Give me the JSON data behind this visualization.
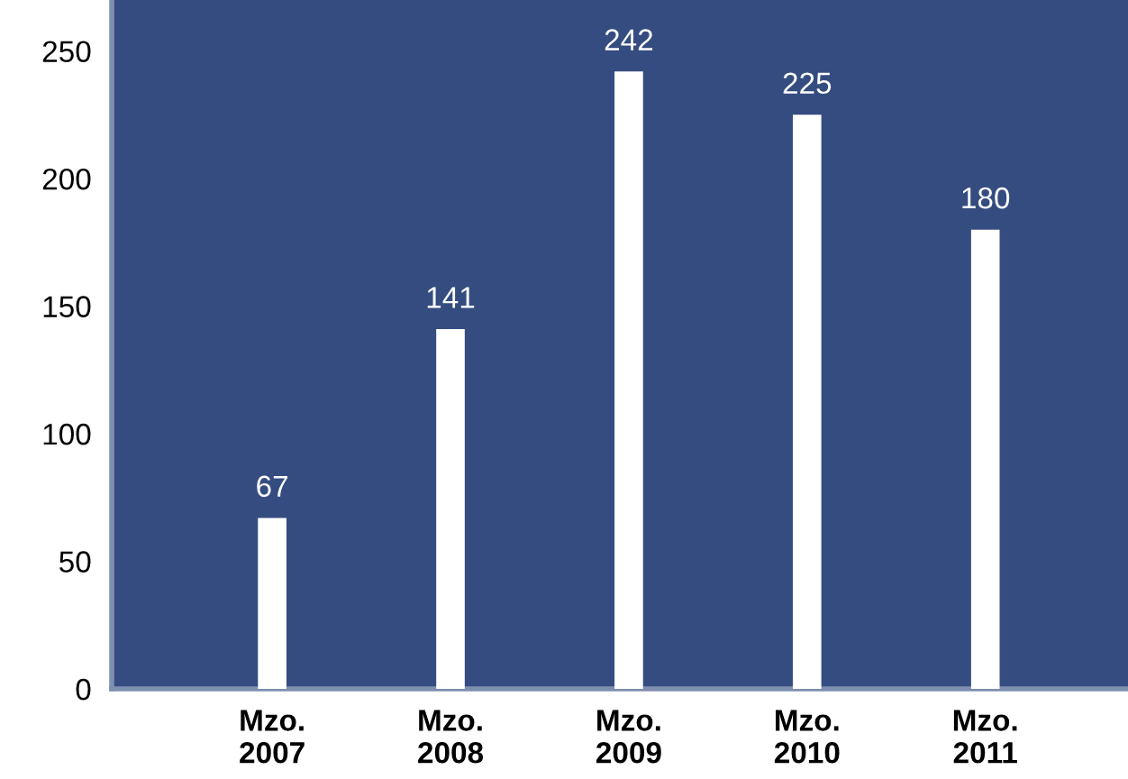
{
  "chart_data": {
    "type": "bar",
    "categories": [
      "Mzo.\n2007",
      "Mzo.\n2008",
      "Mzo.\n2009",
      "Mzo.\n2010",
      "Mzo.\n2011"
    ],
    "values": [
      67,
      141,
      242,
      225,
      180
    ],
    "color": "#ffffff",
    "data_labels": true,
    "ylim": [
      0,
      270
    ],
    "yticks": [
      0,
      50,
      100,
      150,
      200,
      250
    ],
    "grid": false,
    "legend": false
  }
}
